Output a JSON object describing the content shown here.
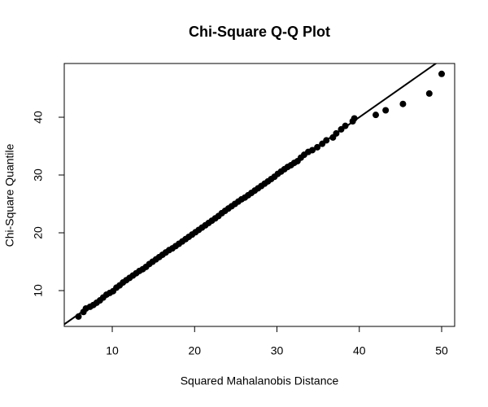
{
  "chart_data": {
    "type": "scatter",
    "title": "Chi-Square Q-Q Plot",
    "x_label": "Squared Mahalanobis Distance",
    "y_label": "Chi-Square Quantile",
    "x": [
      5.9,
      6.5,
      6.8,
      7.3,
      7.7,
      8.1,
      8.5,
      8.9,
      9.3,
      9.7,
      10.1,
      10.5,
      10.9,
      11.3,
      11.7,
      12.1,
      12.5,
      12.9,
      13.3,
      13.7,
      14.1,
      14.5,
      14.9,
      15.3,
      15.7,
      16.1,
      16.5,
      16.9,
      17.3,
      17.7,
      18.1,
      18.5,
      18.9,
      19.3,
      19.7,
      20.1,
      20.5,
      20.9,
      21.3,
      21.7,
      22.1,
      22.5,
      22.9,
      23.3,
      23.7,
      24.1,
      24.5,
      24.9,
      25.3,
      25.7,
      26.1,
      26.5,
      26.9,
      27.3,
      27.7,
      28.1,
      28.5,
      28.9,
      29.3,
      29.7,
      30.1,
      30.5,
      30.9,
      31.3,
      31.7,
      32.1,
      32.5,
      32.9,
      33.3,
      33.8,
      34.3,
      34.9,
      35.5,
      36.0,
      36.8,
      37.2,
      37.8,
      38.3,
      39.2,
      39.4,
      42.0,
      43.2,
      45.3,
      48.5,
      50.0
    ],
    "values": [
      5.5,
      6.3,
      6.9,
      7.2,
      7.5,
      7.9,
      8.3,
      8.8,
      9.3,
      9.6,
      9.9,
      10.5,
      10.9,
      11.4,
      11.8,
      12.2,
      12.6,
      13.0,
      13.4,
      13.7,
      14.1,
      14.6,
      15.0,
      15.4,
      15.8,
      16.2,
      16.6,
      17.0,
      17.3,
      17.7,
      18.1,
      18.5,
      18.9,
      19.3,
      19.7,
      20.1,
      20.5,
      20.9,
      21.3,
      21.7,
      22.1,
      22.5,
      22.9,
      23.4,
      23.8,
      24.2,
      24.6,
      25.0,
      25.4,
      25.8,
      26.1,
      26.5,
      26.9,
      27.3,
      27.7,
      28.1,
      28.5,
      28.9,
      29.3,
      29.7,
      30.2,
      30.6,
      31.0,
      31.4,
      31.7,
      32.1,
      32.4,
      33.0,
      33.5,
      34.0,
      34.3,
      34.8,
      35.4,
      36.0,
      36.5,
      37.2,
      37.9,
      38.5,
      39.3,
      39.8,
      40.4,
      41.2,
      42.3,
      44.1,
      47.5
    ],
    "color": "#000000",
    "reference_line": {
      "slope": 1,
      "intercept": 0
    },
    "xlim": [
      4.17,
      51.58
    ],
    "ylim": [
      3.8,
      49.3
    ],
    "xticks": [
      10,
      20,
      30,
      40,
      50
    ],
    "yticks": [
      10,
      20,
      30,
      40
    ]
  }
}
